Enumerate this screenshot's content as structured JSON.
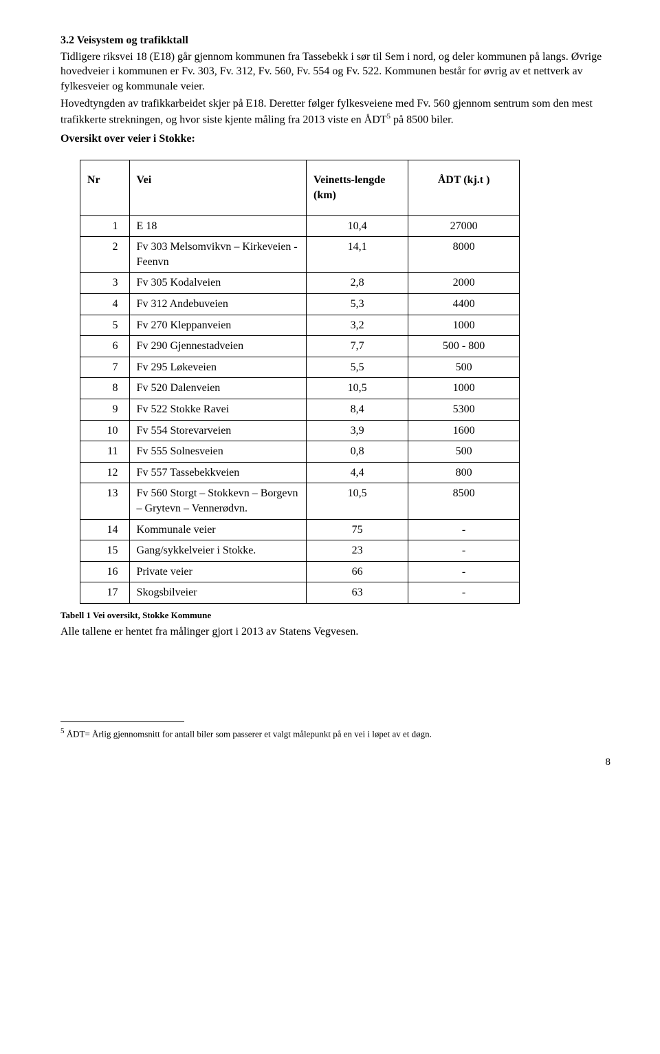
{
  "heading": "3.2  Veisystem og trafikktall",
  "para1": "Tidligere riksvei 18 (E18) går gjennom kommunen fra Tassebekk i sør til Sem i nord, og deler kommunen på langs. Øvrige hovedveier i kommunen er Fv. 303, Fv. 312, Fv. 560, Fv. 554 og Fv. 522. Kommunen består for øvrig av et nettverk av fylkesveier og kommunale veier.",
  "para2a": "Hovedtyngden av trafikkarbeidet skjer på E18. Deretter følger fylkesveiene med Fv. 560 gjennom sentrum som den mest trafikkerte strekningen, og hvor siste kjente måling fra 2013 viste en ÅDT",
  "para2_sup": "5",
  "para2b": " på 8500 biler.",
  "overview_title": "Oversikt over veier i Stokke:",
  "table": {
    "head": {
      "nr": "Nr",
      "vei": "Vei",
      "len": "Veinetts-lengde (km)",
      "adt": "ÅDT (kj.t )"
    },
    "rows": [
      {
        "nr": "1",
        "vei": "E 18",
        "len": "10,4",
        "adt": "27000"
      },
      {
        "nr": "2",
        "vei": "Fv 303 Melsomvikvn – Kirkeveien - Feenvn",
        "len": "14,1",
        "adt": "8000"
      },
      {
        "nr": "3",
        "vei": "Fv 305 Kodalveien",
        "len": "2,8",
        "adt": "2000"
      },
      {
        "nr": "4",
        "vei": "Fv 312 Andebuveien",
        "len": "5,3",
        "adt": "4400"
      },
      {
        "nr": "5",
        "vei": "Fv 270 Kleppanveien",
        "len": "3,2",
        "adt": "1000"
      },
      {
        "nr": "6",
        "vei": "Fv 290 Gjennestadveien",
        "len": "7,7",
        "adt": "500 - 800"
      },
      {
        "nr": "7",
        "vei": "Fv 295 Løkeveien",
        "len": "5,5",
        "adt": "500"
      },
      {
        "nr": "8",
        "vei": "Fv 520 Dalenveien",
        "len": "10,5",
        "adt": "1000"
      },
      {
        "nr": "9",
        "vei": "Fv 522 Stokke Ravei",
        "len": "8,4",
        "adt": "5300"
      },
      {
        "nr": "10",
        "vei": "Fv 554 Storevarveien",
        "len": "3,9",
        "adt": "1600"
      },
      {
        "nr": "11",
        "vei": "Fv 555 Solnesveien",
        "len": "0,8",
        "adt": "500"
      },
      {
        "nr": "12",
        "vei": "Fv 557 Tassebekkveien",
        "len": "4,4",
        "adt": "800"
      },
      {
        "nr": "13",
        "vei": "Fv 560 Storgt – Stokkevn – Borgevn – Grytevn – Vennerødvn.",
        "len": "10,5",
        "adt": "8500"
      },
      {
        "nr": "14",
        "vei": "Kommunale veier",
        "len": "75",
        "adt": "-"
      },
      {
        "nr": "15",
        "vei": "Gang/sykkelveier i Stokke.",
        "len": "23",
        "adt": "-"
      },
      {
        "nr": "16",
        "vei": "Private veier",
        "len": "66",
        "adt": "-"
      },
      {
        "nr": "17",
        "vei": "Skogsbilveier",
        "len": "63",
        "adt": "-"
      }
    ]
  },
  "caption": "Tabell 1 Vei oversikt, Stokke Kommune",
  "after_caption": "Alle tallene er hentet fra målinger gjort i 2013 av Statens Vegvesen.",
  "footnote_marker": "5",
  "footnote_text": " ÅDT= Årlig gjennomsnitt for antall biler som passerer et valgt målepunkt på en vei i løpet av et døgn.",
  "page_number": "8"
}
